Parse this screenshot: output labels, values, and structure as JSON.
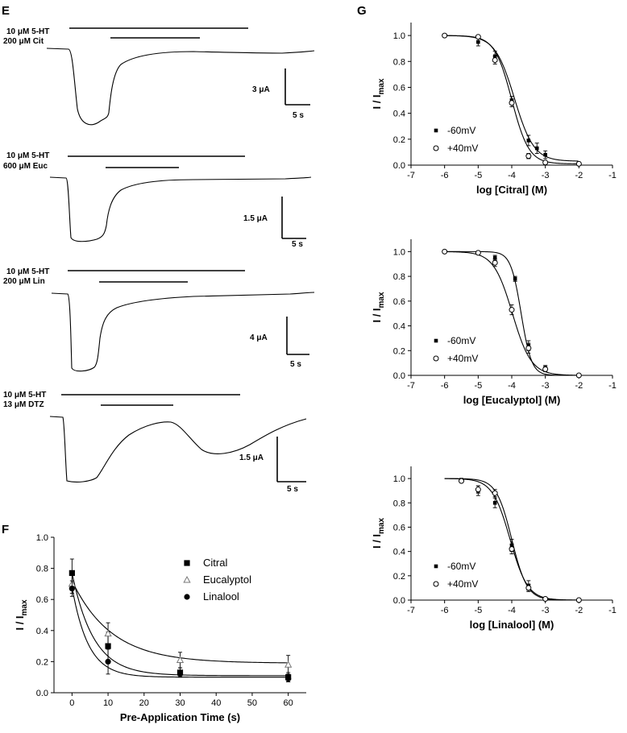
{
  "panels": {
    "E": {
      "label": "E",
      "traces": [
        {
          "line1": "10 μM 5-HT",
          "line2": "200 μM Cit",
          "current": "3 μA",
          "time": "5 s"
        },
        {
          "line1": "10 μM 5-HT",
          "line2": "600 μM Euc",
          "current": "1.5 μA",
          "time": "5 s"
        },
        {
          "line1": "10 μM 5-HT",
          "line2": "200 μM Lin",
          "current": "4 μA",
          "time": "5 s"
        },
        {
          "line1": "10 μM 5-HT",
          "line2": "13 μM DTZ",
          "current": "1.5 μA",
          "time": "5 s"
        }
      ]
    },
    "F": {
      "label": "F"
    },
    "G": {
      "label": "G"
    }
  },
  "chart_data": [
    {
      "panel": "F",
      "type": "scatter",
      "xlabel": "Pre-Application Time (s)",
      "ylabel_main": "I / I",
      "ylabel_sub": "max",
      "xlim": [
        -5,
        65
      ],
      "ylim": [
        0,
        1.0
      ],
      "xticks": [
        "0",
        "10",
        "20",
        "30",
        "40",
        "50",
        "60"
      ],
      "yticks": [
        "0.0",
        "0.2",
        "0.4",
        "0.6",
        "0.8",
        "1.0"
      ],
      "legend_position": "top-right",
      "x": [
        0,
        10,
        30,
        60
      ],
      "series": [
        {
          "name": "Citral",
          "marker": "square",
          "values": [
            0.77,
            0.3,
            0.13,
            0.1
          ],
          "err": [
            0.09,
            0.09,
            0.03,
            0.03
          ],
          "fit": {
            "y0": 0.77,
            "plateau": 0.11,
            "tau": 6.0
          }
        },
        {
          "name": "Eucalyptol",
          "marker": "triangle-open",
          "values": [
            0.7,
            0.38,
            0.21,
            0.18
          ],
          "err": [
            0.06,
            0.07,
            0.05,
            0.06
          ],
          "fit": {
            "y0": 0.72,
            "plateau": 0.19,
            "tau": 11.0
          }
        },
        {
          "name": "Linalool",
          "marker": "circle",
          "values": [
            0.67,
            0.2,
            0.12,
            0.09
          ],
          "err": [
            0.05,
            0.08,
            0.02,
            0.02
          ],
          "fit": {
            "y0": 0.68,
            "plateau": 0.1,
            "tau": 4.5
          }
        }
      ]
    },
    {
      "panel": "G1",
      "type": "scatter",
      "xlabel": "log [Citral] (M)",
      "ylabel_main": "I / I",
      "ylabel_sub": "max",
      "xlim": [
        -7,
        -1
      ],
      "ylim": [
        0,
        1.1
      ],
      "xticks": [
        "-7",
        "-6",
        "-5",
        "-4",
        "-3",
        "-2",
        "-1"
      ],
      "yticks": [
        "0.0",
        "0.2",
        "0.4",
        "0.6",
        "0.8",
        "1.0"
      ],
      "legend_position": "bottom-left",
      "series": [
        {
          "name": "-60mV",
          "marker": "square-small",
          "x": [
            -6,
            -5,
            -4.5,
            -4,
            -3.5,
            -3.25,
            -3,
            -2
          ],
          "values": [
            1.0,
            0.95,
            0.84,
            0.5,
            0.19,
            0.13,
            0.08,
            0.01
          ],
          "err": [
            0,
            0.03,
            0.04,
            0.03,
            0.04,
            0.04,
            0.03,
            0
          ],
          "fit": {
            "ic50": -3.92,
            "hill": 1.5,
            "bottom": 0.03
          }
        },
        {
          "name": "+40mV",
          "marker": "circle-open",
          "x": [
            -6,
            -5,
            -4.5,
            -4,
            -3.5,
            -3,
            -2
          ],
          "values": [
            1.0,
            0.99,
            0.81,
            0.48,
            0.07,
            0.02,
            0.01
          ],
          "err": [
            0,
            0,
            0.03,
            0.03,
            0.02,
            0,
            0
          ],
          "fit": {
            "ic50": -4.0,
            "hill": 1.7,
            "bottom": 0.01
          }
        }
      ]
    },
    {
      "panel": "G2",
      "type": "scatter",
      "xlabel": "log [Eucalyptol] (M)",
      "ylabel_main": "I / I",
      "ylabel_sub": "max",
      "xlim": [
        -7,
        -1
      ],
      "ylim": [
        0,
        1.1
      ],
      "xticks": [
        "-7",
        "-6",
        "-5",
        "-4",
        "-3",
        "-2",
        "-1"
      ],
      "yticks": [
        "0.0",
        "0.2",
        "0.4",
        "0.6",
        "0.8",
        "1.0"
      ],
      "legend_position": "bottom-left",
      "series": [
        {
          "name": "-60mV",
          "marker": "square-small",
          "x": [
            -6,
            -5,
            -4.5,
            -3.9,
            -3.5,
            -3,
            -2
          ],
          "values": [
            1.0,
            0.99,
            0.95,
            0.78,
            0.24,
            0.06,
            0.0
          ],
          "err": [
            0,
            0,
            0.02,
            0.02,
            0.04,
            0.02,
            0
          ],
          "fit": {
            "ic50": -3.72,
            "hill": 2.8,
            "bottom": 0.0
          }
        },
        {
          "name": "+40mV",
          "marker": "circle-open",
          "x": [
            -6,
            -5,
            -4.5,
            -4,
            -3.5,
            -3,
            -2
          ],
          "values": [
            1.0,
            0.99,
            0.91,
            0.53,
            0.22,
            0.05,
            0.0
          ],
          "err": [
            0,
            0,
            0.03,
            0.04,
            0.04,
            0.02,
            0
          ],
          "fit": {
            "ic50": -3.98,
            "hill": 1.55,
            "bottom": 0.0
          }
        }
      ]
    },
    {
      "panel": "G3",
      "type": "scatter",
      "xlabel": "log [Linalool] (M)",
      "ylabel_main": "I / I",
      "ylabel_sub": "max",
      "xlim": [
        -7,
        -1
      ],
      "ylim": [
        0,
        1.1
      ],
      "xticks": [
        "-7",
        "-6",
        "-5",
        "-4",
        "-3",
        "-2",
        "-1"
      ],
      "yticks": [
        "0.0",
        "0.2",
        "0.4",
        "0.6",
        "0.8",
        "1.0"
      ],
      "legend_position": "bottom-left",
      "series": [
        {
          "name": "-60mV",
          "marker": "square-small",
          "x": [
            -5.5,
            -5,
            -4.5,
            -4,
            -3.5,
            -2
          ],
          "values": [
            0.99,
            0.9,
            0.8,
            0.45,
            0.12,
            0.0
          ],
          "err": [
            0,
            0.04,
            0.04,
            0.05,
            0.04,
            0
          ],
          "fit": {
            "ic50": -4.05,
            "hill": 1.65,
            "bottom": 0.0
          }
        },
        {
          "name": "+40mV",
          "marker": "circle-open",
          "x": [
            -5.5,
            -5,
            -4.5,
            -4,
            -3.5,
            -3,
            -2
          ],
          "values": [
            0.98,
            0.91,
            0.88,
            0.42,
            0.1,
            0.01,
            0.0
          ],
          "err": [
            0,
            0.03,
            0.03,
            0.04,
            0.03,
            0,
            0
          ],
          "fit": {
            "ic50": -4.0,
            "hill": 1.9,
            "bottom": 0.0
          }
        }
      ]
    }
  ]
}
